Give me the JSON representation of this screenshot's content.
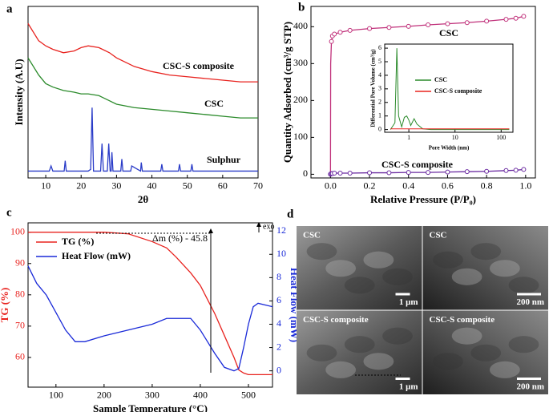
{
  "chart_data": [
    {
      "panel": "a",
      "type": "line",
      "xlabel": "2θ",
      "ylabel": "Intensity (A.U)",
      "xlim": [
        5,
        70
      ],
      "xticks": [
        10,
        20,
        30,
        40,
        50,
        60,
        70
      ],
      "ylim": [
        0,
        100
      ],
      "x": [
        5,
        8,
        10,
        12,
        15,
        18,
        20,
        22,
        25,
        28,
        30,
        35,
        40,
        45,
        50,
        55,
        60,
        65,
        70
      ],
      "series": [
        {
          "name": "CSC-S composite",
          "color": "#e8231f",
          "values": [
            90,
            80,
            77,
            75,
            73,
            74,
            76,
            77,
            76,
            73,
            70,
            65,
            62,
            60,
            59,
            58,
            57,
            56,
            56
          ]
        },
        {
          "name": "CSC",
          "color": "#2a8a2a",
          "values": [
            70,
            60,
            55,
            53,
            51,
            50,
            49,
            49,
            48,
            45,
            43,
            41,
            40,
            39,
            38,
            37,
            36,
            35,
            35
          ]
        },
        {
          "name": "Sulphur",
          "color": "#2a3cc8",
          "x": [
            5,
            11,
            11.5,
            12,
            15.2,
            15.5,
            15.8,
            22,
            22.7,
            23.1,
            23.5,
            25.5,
            25.9,
            26.3,
            27.4,
            27.8,
            28.2,
            28.5,
            28.7,
            29,
            31.2,
            31.5,
            31.8,
            34,
            34.3,
            36.8,
            37,
            37.3,
            42.5,
            42.8,
            43.1,
            47.5,
            47.8,
            48.1,
            51,
            51.3,
            51.6,
            70
          ],
          "values": [
            4,
            4,
            7,
            4,
            4,
            10,
            4,
            4,
            5,
            41,
            4,
            4,
            20,
            4,
            4,
            20,
            4,
            4,
            15,
            4,
            4,
            11,
            4,
            4,
            7,
            4,
            9,
            4,
            4,
            8,
            4,
            4,
            8,
            4,
            4,
            8,
            4,
            4
          ]
        }
      ]
    },
    {
      "panel": "b",
      "type": "line",
      "xlabel": "Relative Pressure (P/P₀)",
      "ylabel": "Quantity Adsorbed (cm³/g STP)",
      "xlim": [
        -0.1,
        1.05
      ],
      "xticks": [
        {
          "value": 0,
          "label": "0.0"
        },
        0.2,
        0.4,
        0.6,
        0.8,
        {
          "value": 1,
          "label": "1.0"
        }
      ],
      "ylim": [
        -10,
        455
      ],
      "yticks": [
        0,
        100,
        200,
        300,
        400
      ],
      "markers": true,
      "x": [
        0,
        0.001,
        0.005,
        0.01,
        0.02,
        0.05,
        0.1,
        0.2,
        0.3,
        0.4,
        0.5,
        0.6,
        0.7,
        0.8,
        0.9,
        0.95,
        0.99
      ],
      "series": [
        {
          "name": "CSC",
          "color": "#c0307a",
          "values": [
            0,
            300,
            360,
            375,
            380,
            385,
            390,
            395,
            398,
            401,
            405,
            408,
            411,
            415,
            420,
            423,
            428
          ]
        },
        {
          "name": "CSC-S composite",
          "color": "#6a2aa0",
          "values": [
            0,
            1,
            2,
            2,
            3,
            3,
            3,
            4,
            4,
            5,
            5,
            6,
            7,
            8,
            10,
            11,
            13
          ]
        }
      ]
    },
    {
      "type": "line",
      "xlabel": "Pore Width (nm)",
      "ylabel": "Differential Pore Volume (cm³/g)",
      "xscale": "log",
      "xlim": [
        0.3,
        180
      ],
      "xticks": [
        1,
        10,
        100
      ],
      "ylim": [
        -0.2,
        6.3
      ],
      "yticks": [
        0,
        1,
        2,
        3,
        4,
        5,
        6
      ],
      "x": [
        0.4,
        0.5,
        0.55,
        0.6,
        0.7,
        0.8,
        0.9,
        1.0,
        1.1,
        1.3,
        1.5,
        2,
        3,
        5,
        10,
        50,
        150
      ],
      "series": [
        {
          "name": "CSC",
          "color": "#2a8a2a",
          "values": [
            0,
            0.5,
            6,
            1,
            0.2,
            0.9,
            1.0,
            0.7,
            0.3,
            0.8,
            0.4,
            0.05,
            0,
            0,
            0,
            0,
            0
          ]
        },
        {
          "name": "CSC-S composite",
          "color": "#e8231f",
          "values": [
            0.05,
            0.05,
            0.05,
            0.05,
            0.05,
            0.05,
            0.05,
            0.05,
            0.05,
            0.05,
            0.05,
            0.05,
            0.05,
            0.05,
            0.05,
            0.05,
            0.05
          ]
        }
      ]
    },
    {
      "panel": "c",
      "type": "line",
      "xlabel": "Sample Temperature (°C)",
      "ylabel": "TG (%)",
      "y2label": "Heat Flow (mW)",
      "xlim": [
        42,
        550
      ],
      "xticks": [
        100,
        200,
        300,
        400,
        500
      ],
      "ylim": [
        50.5,
        103
      ],
      "yticks": [
        60,
        70,
        80,
        90,
        100
      ],
      "y2lim": [
        -1.4,
        12.7
      ],
      "y2ticks": [
        0,
        2,
        4,
        6,
        8,
        10,
        12
      ],
      "axis_colors": true,
      "annotations": [
        "Δm (%) - 45.8",
        "exo"
      ],
      "x": [
        42,
        60,
        80,
        100,
        120,
        140,
        160,
        200,
        250,
        300,
        330,
        350,
        380,
        400,
        430,
        450,
        470,
        480,
        490,
        500,
        510,
        520,
        550
      ],
      "series": [
        {
          "name": "TG (%)",
          "color": "#e8231f",
          "values": [
            100,
            100,
            100,
            100,
            100,
            100,
            100,
            100,
            99.5,
            97,
            95,
            92,
            87,
            83,
            74,
            67,
            60,
            56,
            55,
            54.5,
            54.5,
            54.5,
            54.5
          ]
        },
        {
          "name": "Heat Flow (mW)",
          "color": "#1a2ad8",
          "axis": "y2",
          "values": [
            9,
            7.5,
            6.5,
            5,
            3.5,
            2.5,
            2.5,
            3,
            3.5,
            4,
            4.5,
            4.5,
            4.5,
            3.5,
            1.5,
            0.3,
            0,
            0.2,
            2,
            4,
            5.5,
            5.8,
            5.5
          ]
        }
      ]
    },
    {
      "panel": "d",
      "type": "image",
      "images": [
        {
          "label": "CSC",
          "scale": "1 μm"
        },
        {
          "label": "CSC",
          "scale": "200 nm"
        },
        {
          "label": "CSC-S composite",
          "scale": "1 μm"
        },
        {
          "label": "CSC-S composite",
          "scale": "200 nm"
        }
      ]
    }
  ]
}
